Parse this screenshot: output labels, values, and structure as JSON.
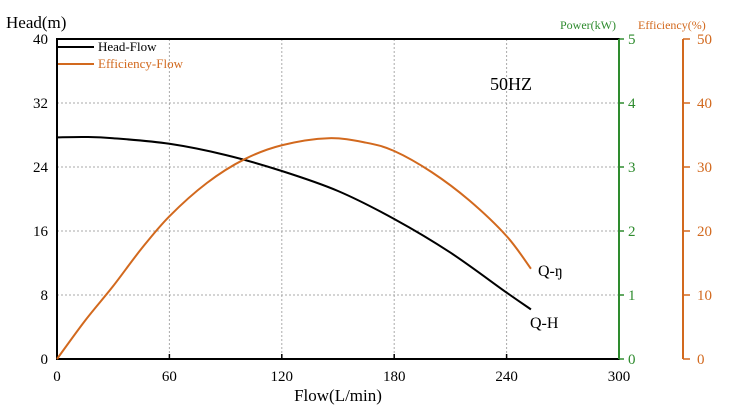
{
  "chart_data": {
    "type": "line",
    "annotation": "50HZ",
    "xlabel": "Flow(L/min)",
    "ylabel": "Head(m)",
    "y2label": "Power(kW)",
    "y3label": "Efficiency(%)",
    "xlim": [
      0,
      300
    ],
    "ylim": [
      0,
      40
    ],
    "y2lim": [
      0,
      5
    ],
    "y3lim": [
      0,
      50
    ],
    "xticks": [
      0,
      60,
      120,
      180,
      240,
      300
    ],
    "yticks": [
      0,
      8,
      16,
      24,
      32,
      40
    ],
    "y2ticks": [
      0,
      1,
      2,
      3,
      4,
      5
    ],
    "y3ticks": [
      0,
      10,
      20,
      30,
      40,
      50
    ],
    "grid": true,
    "legend_position": "top-left",
    "series": [
      {
        "name": "Head-Flow",
        "label": "Q-H",
        "axis": "left",
        "color": "#000000",
        "x": [
          0,
          15,
          30,
          60,
          90,
          120,
          150,
          180,
          210,
          240,
          253
        ],
        "y": [
          27.7,
          27.75,
          27.6,
          26.9,
          25.5,
          23.5,
          21.0,
          17.5,
          13.3,
          8.3,
          6.2
        ]
      },
      {
        "name": "Efficiency-Flow",
        "label": "Q-ŋ",
        "axis": "efficiency",
        "color": "#d2691e",
        "x": [
          0,
          15,
          30,
          45,
          60,
          80,
          100,
          120,
          145,
          165,
          180,
          200,
          220,
          240,
          253
        ],
        "y": [
          0,
          6.0,
          11.4,
          17.2,
          22.3,
          27.5,
          31.2,
          33.4,
          34.5,
          33.8,
          32.5,
          29.2,
          24.8,
          19.2,
          14.1
        ]
      }
    ],
    "colors": {
      "power_axis": "#2e8b2e",
      "efficiency_axis": "#d2691e"
    }
  }
}
